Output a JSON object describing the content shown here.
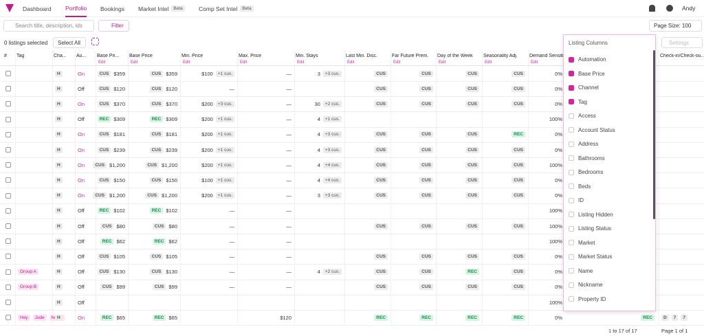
{
  "nav": {
    "items": [
      {
        "label": "Dashboard"
      },
      {
        "label": "Portfolio",
        "active": true
      },
      {
        "label": "Bookings"
      },
      {
        "label": "Market Intel",
        "badge": "Beta"
      },
      {
        "label": "Comp Set Intel",
        "badge": "Beta"
      }
    ],
    "user": "Andy"
  },
  "toolbar": {
    "search_placeholder": "Search title, description, ids",
    "filter": "Filter",
    "page_size": "Page Size: 100",
    "settings": "Settings"
  },
  "selection": {
    "count_text": "0 listings selected",
    "select_all": "Select All"
  },
  "table": {
    "edit_label": "Edit",
    "headers": [
      {
        "label": "#"
      },
      {
        "label": "Tag"
      },
      {
        "label": "Cha..."
      },
      {
        "label": "Au..."
      },
      {
        "label": "Base Pri...",
        "edit": true
      },
      {
        "label": "Base Price",
        "edit": true
      },
      {
        "label": "Min. Price",
        "edit": true
      },
      {
        "label": "Max. Price",
        "edit": true
      },
      {
        "label": "Min. Stays",
        "edit": true
      },
      {
        "label": "Last Min. Disc.",
        "edit": true
      },
      {
        "label": "Far Future Prem.",
        "edit": true
      },
      {
        "label": "Day of the Week",
        "edit": true
      },
      {
        "label": "Seasonality Adj.",
        "edit": true
      },
      {
        "label": "Demand Sensiti",
        "edit": true
      },
      {
        "label": "Check-in/Check-ou..."
      }
    ],
    "rows": [
      {
        "channel": "H",
        "automation": "On",
        "rec": {
          "badge": "CUS",
          "value": "$359"
        },
        "base": {
          "badge": "CUS",
          "value": "$359"
        },
        "min": {
          "value": "$100",
          "badge": "+1 cus."
        },
        "max": "—",
        "stays": {
          "value": "3",
          "badge": "+3 cus."
        },
        "lmd": "CUS",
        "ffp": "CUS",
        "dow": "CUS",
        "sea": "CUS",
        "demand": "0%"
      },
      {
        "channel": "H",
        "automation": "Off",
        "rec": {
          "badge": "CUS",
          "value": "$120"
        },
        "base": {
          "badge": "CUS",
          "value": "$120"
        },
        "min": "—",
        "max": "—",
        "lmd": "CUS",
        "ffp": "CUS",
        "dow": "CUS",
        "sea": "CUS",
        "demand": "0%"
      },
      {
        "channel": "H",
        "automation": "On",
        "rec": {
          "badge": "CUS",
          "value": "$370"
        },
        "base": {
          "badge": "CUS",
          "value": "$370"
        },
        "min": {
          "value": "$200",
          "badge": "+3 cus."
        },
        "max": "—",
        "stays": {
          "value": "30",
          "badge": "+2 cus."
        },
        "lmd": "CUS",
        "ffp": "CUS",
        "dow": "CUS",
        "sea": "CUS",
        "demand": "0%"
      },
      {
        "channel": "H",
        "automation": "Off",
        "rec": {
          "badge": "REC",
          "value": "$309"
        },
        "base": {
          "badge": "REC",
          "value": "$309"
        },
        "min": {
          "value": "$200",
          "badge": "+1 cus."
        },
        "max": "—",
        "stays": {
          "value": "4",
          "badge": "+1 cus."
        },
        "demand": "100%"
      },
      {
        "channel": "H",
        "automation": "On",
        "rec": {
          "badge": "CUS",
          "value": "$181"
        },
        "base": {
          "badge": "CUS",
          "value": "$181"
        },
        "min": {
          "value": "$200",
          "badge": "+1 cus."
        },
        "max": "—",
        "stays": {
          "value": "4",
          "badge": "+3 cus."
        },
        "lmd": "CUS",
        "ffp": "CUS",
        "dow": "CUS",
        "sea": "REC",
        "demand": "0%"
      },
      {
        "channel": "H",
        "automation": "On",
        "rec": {
          "badge": "CUS",
          "value": "$239"
        },
        "base": {
          "badge": "CUS",
          "value": "$239"
        },
        "min": {
          "value": "$200",
          "badge": "+1 cus."
        },
        "max": "—",
        "stays": {
          "value": "4",
          "badge": "+3 cus."
        },
        "lmd": "CUS",
        "ffp": "CUS",
        "dow": "CUS",
        "sea": "CUS",
        "demand": "0%"
      },
      {
        "channel": "H",
        "automation": "On",
        "rec": {
          "badge": "CUS",
          "value": "$1,200"
        },
        "base": {
          "badge": "CUS",
          "value": "$1,200"
        },
        "min": {
          "value": "$200",
          "badge": "+1 cus."
        },
        "max": "—",
        "stays": {
          "value": "4",
          "badge": "+4 cus."
        },
        "lmd": "CUS",
        "ffp": "CUS",
        "dow": "CUS",
        "sea": "CUS",
        "demand": "100%"
      },
      {
        "channel": "H",
        "automation": "On",
        "rec": {
          "badge": "CUS",
          "value": "$150"
        },
        "base": {
          "badge": "CUS",
          "value": "$150"
        },
        "min": {
          "value": "$100",
          "badge": "+1 cus."
        },
        "max": "—",
        "stays": {
          "value": "4",
          "badge": "+4 cus."
        },
        "lmd": "CUS",
        "ffp": "CUS",
        "dow": "CUS",
        "sea": "CUS",
        "demand": "0%"
      },
      {
        "channel": "H",
        "automation": "On",
        "rec": {
          "badge": "CUS",
          "value": "$1,200"
        },
        "base": {
          "badge": "CUS",
          "value": "$1,200"
        },
        "min": {
          "value": "$200",
          "badge": "+1 cus."
        },
        "max": "—",
        "stays": {
          "value": "3",
          "badge": "+3 cus."
        },
        "lmd": "CUS",
        "ffp": "CUS",
        "dow": "CUS",
        "sea": "CUS",
        "demand": "0%"
      },
      {
        "channel": "H",
        "automation": "Off",
        "rec": {
          "badge": "REC",
          "value": "$102"
        },
        "base": {
          "badge": "REC",
          "value": "$102"
        },
        "min": "—",
        "max": "—",
        "demand": "100%"
      },
      {
        "channel": "H",
        "automation": "Off",
        "rec": {
          "badge": "CUS",
          "value": "$80"
        },
        "base": {
          "badge": "CUS",
          "value": "$80"
        },
        "min": "—",
        "max": "—",
        "lmd": "CUS",
        "ffp": "CUS",
        "dow": "CUS",
        "sea": "CUS",
        "demand": "100%"
      },
      {
        "channel": "H",
        "automation": "Off",
        "rec": {
          "badge": "REC",
          "value": "$62"
        },
        "base": {
          "badge": "REC",
          "value": "$62"
        },
        "min": "—",
        "max": "—",
        "demand": "100%"
      },
      {
        "channel": "H",
        "automation": "Off",
        "rec": {
          "badge": "CUS",
          "value": "$105"
        },
        "base": {
          "badge": "CUS",
          "value": "$105"
        },
        "min": "—",
        "max": "—",
        "lmd": "CUS",
        "ffp": "CUS",
        "dow": "CUS",
        "sea": "CUS",
        "demand": "0%"
      },
      {
        "tags": [
          "Group A"
        ],
        "channel": "H",
        "automation": "Off",
        "rec": {
          "badge": "CUS",
          "value": "$130"
        },
        "base": {
          "badge": "CUS",
          "value": "$130"
        },
        "min": "—",
        "max": "—",
        "stays": {
          "value": "4",
          "badge": "+2 cus."
        },
        "lmd": "CUS",
        "ffp": "CUS",
        "dow": "REC",
        "sea": "CUS",
        "demand": "0%"
      },
      {
        "tags": [
          "Group B"
        ],
        "channel": "H",
        "automation": "Off",
        "rec": {
          "badge": "CUS",
          "value": "$99"
        },
        "base": {
          "badge": "CUS",
          "value": "$99"
        },
        "min": "—",
        "max": "—",
        "lmd": "CUS",
        "ffp": "CUS",
        "dow": "CUS",
        "sea": "CUS",
        "demand": "0%"
      },
      {
        "channel": "H",
        "automation": "Off",
        "demand": "100%"
      },
      {
        "tags": [
          "Hey",
          "Jude",
          "henry"
        ],
        "channel": "H",
        "automation": "On",
        "rec": {
          "badge": "REC",
          "value": "$65"
        },
        "base": {
          "badge": "REC",
          "value": "$65"
        },
        "max": "$120",
        "lmd": "REC",
        "ffp": "REC",
        "dow": "REC",
        "sea": "REC",
        "demand": "0%",
        "hidden": "REC",
        "checkin": [
          "D",
          "7",
          "7"
        ]
      }
    ]
  },
  "column_menu": {
    "title": "Listing Columns",
    "items": [
      {
        "label": "Automation",
        "checked": true
      },
      {
        "label": "Base Price",
        "checked": true
      },
      {
        "label": "Channel",
        "checked": true
      },
      {
        "label": "Tag",
        "checked": true
      },
      {
        "label": "Access",
        "checked": false
      },
      {
        "label": "Account Status",
        "checked": false
      },
      {
        "label": "Address",
        "checked": false
      },
      {
        "label": "Bathrooms",
        "checked": false
      },
      {
        "label": "Bedrooms",
        "checked": false
      },
      {
        "label": "Beds",
        "checked": false
      },
      {
        "label": "ID",
        "checked": false
      },
      {
        "label": "Listing Hidden",
        "checked": false
      },
      {
        "label": "Listing Status",
        "checked": false
      },
      {
        "label": "Market",
        "checked": false
      },
      {
        "label": "Market Status",
        "checked": false
      },
      {
        "label": "Name",
        "checked": false
      },
      {
        "label": "Nickname",
        "checked": false
      },
      {
        "label": "Property ID",
        "checked": false
      }
    ]
  },
  "footer": {
    "range": "1 to 17 of 17",
    "page": "Page 1 of 1"
  }
}
